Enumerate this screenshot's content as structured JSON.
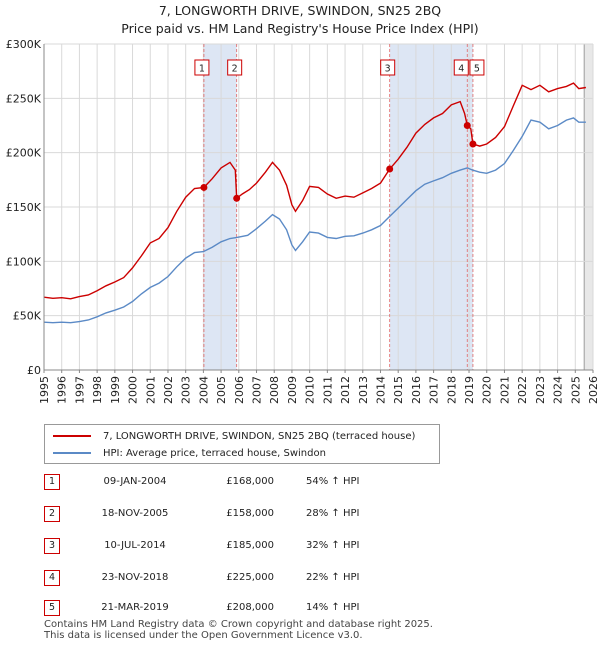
{
  "title": "7, LONGWORTH DRIVE, SWINDON, SN25 2BQ",
  "subtitle": "Price paid vs. HM Land Registry's House Price Index (HPI)",
  "legend": {
    "property_label": "7, LONGWORTH DRIVE, SWINDON, SN25 2BQ (terraced house)",
    "hpi_label": "HPI: Average price, terraced house, Swindon"
  },
  "colors": {
    "property": "#cc0000",
    "hpi": "#5b8ac6",
    "shade": "#dde6f4",
    "grid": "#d9d9d9"
  },
  "chart_data": {
    "type": "line",
    "title": "7, LONGWORTH DRIVE, SWINDON, SN25 2BQ",
    "xlim": [
      1995,
      2026
    ],
    "ylim": [
      0,
      300000
    ],
    "y_ticks": [
      {
        "value": 0,
        "label": "£0"
      },
      {
        "value": 50000,
        "label": "£50K"
      },
      {
        "value": 100000,
        "label": "£100K"
      },
      {
        "value": 150000,
        "label": "£150K"
      },
      {
        "value": 200000,
        "label": "£200K"
      },
      {
        "value": 250000,
        "label": "£250K"
      },
      {
        "value": 300000,
        "label": "£300K"
      }
    ],
    "x_ticks": [
      "1995",
      "1996",
      "1997",
      "1998",
      "1999",
      "2000",
      "2001",
      "2002",
      "2003",
      "2004",
      "2005",
      "2006",
      "2007",
      "2008",
      "2009",
      "2010",
      "2011",
      "2012",
      "2013",
      "2014",
      "2015",
      "2016",
      "2017",
      "2018",
      "2019",
      "2020",
      "2021",
      "2022",
      "2023",
      "2024",
      "2025",
      "2026"
    ],
    "shaded_regions": [
      [
        2004.03,
        2005.88
      ],
      [
        2014.52,
        2019.22
      ]
    ],
    "forecast_start": 2025.5,
    "series": [
      {
        "name": "7, LONGWORTH DRIVE, SWINDON, SN25 2BQ (terraced house)",
        "color": "#cc0000",
        "points": [
          [
            1995.0,
            67000
          ],
          [
            1995.5,
            66000
          ],
          [
            1996.0,
            66500
          ],
          [
            1996.5,
            65500
          ],
          [
            1997.0,
            67500
          ],
          [
            1997.5,
            69000
          ],
          [
            1998.0,
            73000
          ],
          [
            1998.5,
            77500
          ],
          [
            1999.0,
            81000
          ],
          [
            1999.5,
            85000
          ],
          [
            2000.0,
            94000
          ],
          [
            2000.5,
            105000
          ],
          [
            2001.0,
            117000
          ],
          [
            2001.5,
            121000
          ],
          [
            2002.0,
            131000
          ],
          [
            2002.5,
            146000
          ],
          [
            2003.0,
            159000
          ],
          [
            2003.5,
            167000
          ],
          [
            2004.03,
            168000
          ],
          [
            2004.5,
            176000
          ],
          [
            2005.0,
            186000
          ],
          [
            2005.5,
            191000
          ],
          [
            2005.8,
            184000
          ],
          [
            2005.88,
            158000
          ],
          [
            2006.2,
            162000
          ],
          [
            2006.6,
            166000
          ],
          [
            2007.0,
            172000
          ],
          [
            2007.5,
            182000
          ],
          [
            2007.9,
            191000
          ],
          [
            2008.3,
            184000
          ],
          [
            2008.7,
            170000
          ],
          [
            2009.0,
            152000
          ],
          [
            2009.2,
            146000
          ],
          [
            2009.6,
            156000
          ],
          [
            2010.0,
            169000
          ],
          [
            2010.5,
            168000
          ],
          [
            2011.0,
            162000
          ],
          [
            2011.5,
            158000
          ],
          [
            2012.0,
            160000
          ],
          [
            2012.5,
            159000
          ],
          [
            2013.0,
            163000
          ],
          [
            2013.5,
            167000
          ],
          [
            2014.0,
            172000
          ],
          [
            2014.52,
            185000
          ],
          [
            2015.0,
            194000
          ],
          [
            2015.5,
            205000
          ],
          [
            2016.0,
            218000
          ],
          [
            2016.5,
            226000
          ],
          [
            2017.0,
            232000
          ],
          [
            2017.5,
            236000
          ],
          [
            2018.0,
            244000
          ],
          [
            2018.5,
            247000
          ],
          [
            2018.75,
            236000
          ],
          [
            2018.9,
            225000
          ],
          [
            2019.1,
            222000
          ],
          [
            2019.22,
            208000
          ],
          [
            2019.6,
            206000
          ],
          [
            2020.0,
            208000
          ],
          [
            2020.5,
            214000
          ],
          [
            2021.0,
            224000
          ],
          [
            2021.5,
            243000
          ],
          [
            2022.0,
            262000
          ],
          [
            2022.5,
            258000
          ],
          [
            2023.0,
            262000
          ],
          [
            2023.5,
            256000
          ],
          [
            2024.0,
            259000
          ],
          [
            2024.5,
            261000
          ],
          [
            2024.9,
            264000
          ],
          [
            2025.2,
            259000
          ],
          [
            2025.6,
            260000
          ]
        ]
      },
      {
        "name": "HPI: Average price, terraced house, Swindon",
        "color": "#5b8ac6",
        "points": [
          [
            1995.0,
            44000
          ],
          [
            1995.5,
            43500
          ],
          [
            1996.0,
            44000
          ],
          [
            1996.5,
            43500
          ],
          [
            1997.0,
            44500
          ],
          [
            1997.5,
            46000
          ],
          [
            1998.0,
            49000
          ],
          [
            1998.5,
            52500
          ],
          [
            1999.0,
            55000
          ],
          [
            1999.5,
            58000
          ],
          [
            2000.0,
            63000
          ],
          [
            2000.5,
            70000
          ],
          [
            2001.0,
            76000
          ],
          [
            2001.5,
            80000
          ],
          [
            2002.0,
            86000
          ],
          [
            2002.5,
            95000
          ],
          [
            2003.0,
            103000
          ],
          [
            2003.5,
            108000
          ],
          [
            2004.0,
            109000
          ],
          [
            2004.5,
            113000
          ],
          [
            2005.0,
            118000
          ],
          [
            2005.5,
            121000
          ],
          [
            2005.9,
            122000
          ],
          [
            2006.5,
            124000
          ],
          [
            2007.0,
            130000
          ],
          [
            2007.5,
            137000
          ],
          [
            2007.9,
            143000
          ],
          [
            2008.3,
            139000
          ],
          [
            2008.7,
            129000
          ],
          [
            2009.0,
            115000
          ],
          [
            2009.2,
            110000
          ],
          [
            2009.6,
            118000
          ],
          [
            2010.0,
            127000
          ],
          [
            2010.5,
            126000
          ],
          [
            2011.0,
            122000
          ],
          [
            2011.5,
            121000
          ],
          [
            2012.0,
            123000
          ],
          [
            2012.5,
            123500
          ],
          [
            2013.0,
            126000
          ],
          [
            2013.5,
            129000
          ],
          [
            2014.0,
            133000
          ],
          [
            2014.5,
            141000
          ],
          [
            2015.0,
            149000
          ],
          [
            2015.5,
            157000
          ],
          [
            2016.0,
            165000
          ],
          [
            2016.5,
            171000
          ],
          [
            2017.0,
            174000
          ],
          [
            2017.5,
            177000
          ],
          [
            2018.0,
            181000
          ],
          [
            2018.5,
            184000
          ],
          [
            2018.9,
            186000
          ],
          [
            2019.2,
            184000
          ],
          [
            2019.6,
            182000
          ],
          [
            2020.0,
            181000
          ],
          [
            2020.5,
            184000
          ],
          [
            2021.0,
            190000
          ],
          [
            2021.5,
            202000
          ],
          [
            2022.0,
            215000
          ],
          [
            2022.5,
            230000
          ],
          [
            2023.0,
            228000
          ],
          [
            2023.5,
            222000
          ],
          [
            2024.0,
            225000
          ],
          [
            2024.5,
            230000
          ],
          [
            2024.9,
            232000
          ],
          [
            2025.2,
            228000
          ],
          [
            2025.6,
            228000
          ]
        ]
      }
    ],
    "sales": [
      {
        "num": "1",
        "date": "09-JAN-2004",
        "price": "£168,000",
        "hpi": "54% ↑ HPI",
        "x": 2004.03,
        "y": 168000
      },
      {
        "num": "2",
        "date": "18-NOV-2005",
        "price": "£158,000",
        "hpi": "28% ↑ HPI",
        "x": 2005.88,
        "y": 158000
      },
      {
        "num": "3",
        "date": "10-JUL-2014",
        "price": "£185,000",
        "hpi": "32% ↑ HPI",
        "x": 2014.52,
        "y": 185000
      },
      {
        "num": "4",
        "date": "23-NOV-2018",
        "price": "£225,000",
        "hpi": "22% ↑ HPI",
        "x": 2018.9,
        "y": 225000
      },
      {
        "num": "5",
        "date": "21-MAR-2019",
        "price": "£208,000",
        "hpi": "14% ↑ HPI",
        "x": 2019.22,
        "y": 208000
      }
    ]
  },
  "footer": {
    "line1": "Contains HM Land Registry data © Crown copyright and database right 2025.",
    "line2": "This data is licensed under the Open Government Licence v3.0."
  }
}
